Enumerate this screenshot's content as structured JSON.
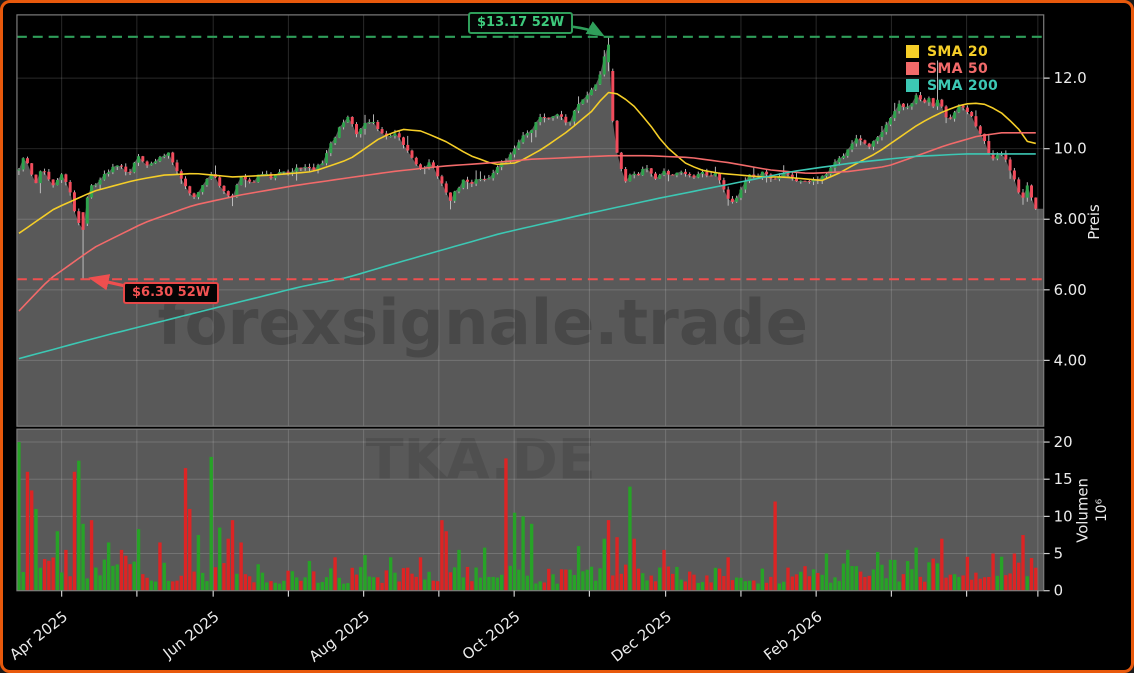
{
  "chart_data": {
    "type": "candlestick",
    "symbol_watermark": "TKA.DE",
    "site_watermark": "forexsignale.trade",
    "price_axis": {
      "label": "Preis",
      "ticks": [
        4,
        6,
        8,
        10,
        12
      ],
      "tick_labels": [
        "4.00",
        "6.00",
        "8.00",
        "10.0",
        "12.0"
      ],
      "range": [
        2.1,
        13.8
      ]
    },
    "volume_axis": {
      "label": "Volumen",
      "unit": "10⁶",
      "ticks": [
        0,
        5,
        10,
        15,
        20
      ],
      "range": [
        0,
        21.7
      ]
    },
    "x_axis": {
      "ticks": [
        {
          "t": 0.042,
          "label": "Apr 2025"
        },
        {
          "t": 0.116,
          "label": ""
        },
        {
          "t": 0.191,
          "label": "Jun 2025"
        },
        {
          "t": 0.265,
          "label": ""
        },
        {
          "t": 0.339,
          "label": "Aug 2025"
        },
        {
          "t": 0.413,
          "label": ""
        },
        {
          "t": 0.487,
          "label": "Oct 2025"
        },
        {
          "t": 0.561,
          "label": ""
        },
        {
          "t": 0.636,
          "label": "Dec 2025"
        },
        {
          "t": 0.71,
          "label": ""
        },
        {
          "t": 0.784,
          "label": "Feb 2026"
        },
        {
          "t": 0.858,
          "label": ""
        },
        {
          "t": 0.932,
          "label": ""
        },
        {
          "t": 1.002,
          "label": ""
        }
      ]
    },
    "legend": [
      {
        "name": "SMA 20",
        "color": "#f5ce28"
      },
      {
        "name": "SMA 50",
        "color": "#f26a6a"
      },
      {
        "name": "SMA 200",
        "color": "#3cc8b4"
      }
    ],
    "annotations": {
      "high": {
        "price": 13.17,
        "label": "$13.17 52W",
        "color": "#2f9e5a"
      },
      "low": {
        "price": 6.3,
        "label": "$6.30 52W",
        "color": "#ef4f4f"
      }
    },
    "colors": {
      "candle_up": "#2fa34d",
      "candle_down": "#f14c5c",
      "wick": "#c9c9c9",
      "vol_up": "#27a327",
      "vol_down": "#dd2424",
      "fill": "#595959",
      "watermark": "#484848",
      "grid": "rgba(255,255,255,0.16)",
      "spine": "#7d7d7d",
      "tick_text": "#ececec",
      "frame": "#e8590c"
    },
    "price_anchors": [
      [
        0,
        9.4
      ],
      [
        0.005,
        9.8
      ],
      [
        0.016,
        9.0
      ],
      [
        0.023,
        9.5
      ],
      [
        0.033,
        8.9
      ],
      [
        0.042,
        9.3
      ],
      [
        0.051,
        8.7
      ],
      [
        0.055,
        8.2
      ],
      [
        0.062,
        7.7
      ],
      [
        0.069,
        8.9
      ],
      [
        0.079,
        9.1
      ],
      [
        0.089,
        9.4
      ],
      [
        0.098,
        9.6
      ],
      [
        0.108,
        9.3
      ],
      [
        0.118,
        9.8
      ],
      [
        0.128,
        9.5
      ],
      [
        0.137,
        9.7
      ],
      [
        0.147,
        9.9
      ],
      [
        0.154,
        9.5
      ],
      [
        0.162,
        9.0
      ],
      [
        0.172,
        8.6
      ],
      [
        0.181,
        9.0
      ],
      [
        0.191,
        9.3
      ],
      [
        0.199,
        8.9
      ],
      [
        0.209,
        8.6
      ],
      [
        0.218,
        9.2
      ],
      [
        0.228,
        9.0
      ],
      [
        0.238,
        9.3
      ],
      [
        0.248,
        9.2
      ],
      [
        0.257,
        9.4
      ],
      [
        0.267,
        9.3
      ],
      [
        0.277,
        9.5
      ],
      [
        0.289,
        9.4
      ],
      [
        0.298,
        9.6
      ],
      [
        0.308,
        10.2
      ],
      [
        0.318,
        10.7
      ],
      [
        0.325,
        10.9
      ],
      [
        0.332,
        10.4
      ],
      [
        0.339,
        10.7
      ],
      [
        0.347,
        10.8
      ],
      [
        0.355,
        10.5
      ],
      [
        0.362,
        10.3
      ],
      [
        0.371,
        10.4
      ],
      [
        0.381,
        10.0
      ],
      [
        0.388,
        9.7
      ],
      [
        0.396,
        9.4
      ],
      [
        0.404,
        9.6
      ],
      [
        0.411,
        9.3
      ],
      [
        0.418,
        8.9
      ],
      [
        0.423,
        8.5
      ],
      [
        0.43,
        8.8
      ],
      [
        0.437,
        9.1
      ],
      [
        0.444,
        9.0
      ],
      [
        0.452,
        9.2
      ],
      [
        0.46,
        9.1
      ],
      [
        0.468,
        9.4
      ],
      [
        0.476,
        9.6
      ],
      [
        0.483,
        9.8
      ],
      [
        0.491,
        10.2
      ],
      [
        0.498,
        10.4
      ],
      [
        0.505,
        10.6
      ],
      [
        0.513,
        10.9
      ],
      [
        0.52,
        10.8
      ],
      [
        0.527,
        11.0
      ],
      [
        0.534,
        10.9
      ],
      [
        0.54,
        10.7
      ],
      [
        0.547,
        11.1
      ],
      [
        0.554,
        11.4
      ],
      [
        0.561,
        11.6
      ],
      [
        0.568,
        11.9
      ],
      [
        0.574,
        12.3
      ],
      [
        0.578,
        12.95
      ],
      [
        0.582,
        11.3
      ],
      [
        0.586,
        10.2
      ],
      [
        0.59,
        9.7
      ],
      [
        0.594,
        9.3
      ],
      [
        0.598,
        8.95
      ],
      [
        0.602,
        9.4
      ],
      [
        0.608,
        9.2
      ],
      [
        0.615,
        9.5
      ],
      [
        0.622,
        9.3
      ],
      [
        0.628,
        9.1
      ],
      [
        0.634,
        9.4
      ],
      [
        0.641,
        9.2
      ],
      [
        0.649,
        9.35
      ],
      [
        0.657,
        9.3
      ],
      [
        0.664,
        9.2
      ],
      [
        0.67,
        9.35
      ],
      [
        0.678,
        9.25
      ],
      [
        0.686,
        9.3
      ],
      [
        0.693,
        8.9
      ],
      [
        0.699,
        8.5
      ],
      [
        0.706,
        8.6
      ],
      [
        0.712,
        9.0
      ],
      [
        0.719,
        9.3
      ],
      [
        0.725,
        9.1
      ],
      [
        0.732,
        9.35
      ],
      [
        0.739,
        9.2
      ],
      [
        0.744,
        9.1
      ],
      [
        0.751,
        9.3
      ],
      [
        0.758,
        9.2
      ],
      [
        0.766,
        9.1
      ],
      [
        0.774,
        9.05
      ],
      [
        0.781,
        9.15
      ],
      [
        0.787,
        9.1
      ],
      [
        0.795,
        9.3
      ],
      [
        0.803,
        9.6
      ],
      [
        0.81,
        9.8
      ],
      [
        0.817,
        10.1
      ],
      [
        0.823,
        10.3
      ],
      [
        0.829,
        10.2
      ],
      [
        0.836,
        10.0
      ],
      [
        0.842,
        10.25
      ],
      [
        0.848,
        10.4
      ],
      [
        0.854,
        10.7
      ],
      [
        0.86,
        11.0
      ],
      [
        0.865,
        11.3
      ],
      [
        0.871,
        11.1
      ],
      [
        0.877,
        11.25
      ],
      [
        0.883,
        11.5
      ],
      [
        0.889,
        11.3
      ],
      [
        0.895,
        11.4
      ],
      [
        0.9,
        11.2
      ],
      [
        0.905,
        11.5
      ],
      [
        0.91,
        11.0
      ],
      [
        0.915,
        10.8
      ],
      [
        0.92,
        11.0
      ],
      [
        0.925,
        11.2
      ],
      [
        0.93,
        11.1
      ],
      [
        0.935,
        11.0
      ],
      [
        0.939,
        10.8
      ],
      [
        0.944,
        10.5
      ],
      [
        0.949,
        10.3
      ],
      [
        0.954,
        9.9
      ],
      [
        0.959,
        9.7
      ],
      [
        0.964,
        9.9
      ],
      [
        0.969,
        9.8
      ],
      [
        0.974,
        9.4
      ],
      [
        0.979,
        9.1
      ],
      [
        0.983,
        8.8
      ],
      [
        0.987,
        8.55
      ],
      [
        0.991,
        9.0
      ],
      [
        0.995,
        8.7
      ],
      [
        0.999,
        8.3
      ]
    ],
    "overrides": [
      {
        "t": 0.062,
        "low": 6.3,
        "close": 7.7,
        "open": 8.2
      },
      {
        "t": 0.578,
        "high": 13.17,
        "close": 12.95,
        "open": 12.45
      },
      {
        "t": 0.905,
        "high": 12.5
      }
    ],
    "sma20_anchors": [
      [
        0,
        7.6
      ],
      [
        0.035,
        8.3
      ],
      [
        0.074,
        8.8
      ],
      [
        0.113,
        9.1
      ],
      [
        0.142,
        9.25
      ],
      [
        0.172,
        9.3
      ],
      [
        0.21,
        9.2
      ],
      [
        0.248,
        9.25
      ],
      [
        0.289,
        9.35
      ],
      [
        0.325,
        9.7
      ],
      [
        0.355,
        10.3
      ],
      [
        0.376,
        10.55
      ],
      [
        0.396,
        10.5
      ],
      [
        0.42,
        10.2
      ],
      [
        0.444,
        9.8
      ],
      [
        0.468,
        9.55
      ],
      [
        0.49,
        9.6
      ],
      [
        0.515,
        10.0
      ],
      [
        0.54,
        10.5
      ],
      [
        0.565,
        11.1
      ],
      [
        0.578,
        11.6
      ],
      [
        0.59,
        11.55
      ],
      [
        0.605,
        11.2
      ],
      [
        0.62,
        10.7
      ],
      [
        0.635,
        10.1
      ],
      [
        0.655,
        9.6
      ],
      [
        0.67,
        9.4
      ],
      [
        0.69,
        9.3
      ],
      [
        0.71,
        9.25
      ],
      [
        0.73,
        9.2
      ],
      [
        0.75,
        9.2
      ],
      [
        0.77,
        9.15
      ],
      [
        0.79,
        9.1
      ],
      [
        0.806,
        9.3
      ],
      [
        0.825,
        9.6
      ],
      [
        0.845,
        9.9
      ],
      [
        0.865,
        10.3
      ],
      [
        0.885,
        10.7
      ],
      [
        0.905,
        11.0
      ],
      [
        0.922,
        11.2
      ],
      [
        0.937,
        11.3
      ],
      [
        0.952,
        11.25
      ],
      [
        0.967,
        11.0
      ],
      [
        0.982,
        10.6
      ],
      [
        0.993,
        10.15
      ]
    ],
    "sma50_anchors": [
      [
        0,
        5.4
      ],
      [
        0.03,
        6.3
      ],
      [
        0.074,
        7.2
      ],
      [
        0.123,
        7.9
      ],
      [
        0.172,
        8.4
      ],
      [
        0.22,
        8.7
      ],
      [
        0.27,
        8.95
      ],
      [
        0.318,
        9.15
      ],
      [
        0.367,
        9.35
      ],
      [
        0.415,
        9.5
      ],
      [
        0.465,
        9.6
      ],
      [
        0.503,
        9.7
      ],
      [
        0.542,
        9.75
      ],
      [
        0.581,
        9.8
      ],
      [
        0.62,
        9.8
      ],
      [
        0.66,
        9.75
      ],
      [
        0.699,
        9.6
      ],
      [
        0.738,
        9.4
      ],
      [
        0.776,
        9.3
      ],
      [
        0.815,
        9.35
      ],
      [
        0.854,
        9.5
      ],
      [
        0.883,
        9.8
      ],
      [
        0.912,
        10.1
      ],
      [
        0.942,
        10.35
      ],
      [
        0.966,
        10.45
      ],
      [
        0.996,
        10.45
      ]
    ],
    "sma200_anchors": [
      [
        0,
        4.05
      ],
      [
        0.084,
        4.7
      ],
      [
        0.181,
        5.4
      ],
      [
        0.279,
        6.1
      ],
      [
        0.323,
        6.35
      ],
      [
        0.376,
        6.8
      ],
      [
        0.474,
        7.6
      ],
      [
        0.55,
        8.1
      ],
      [
        0.63,
        8.6
      ],
      [
        0.7,
        9.0
      ],
      [
        0.76,
        9.35
      ],
      [
        0.82,
        9.6
      ],
      [
        0.88,
        9.78
      ],
      [
        0.93,
        9.85
      ],
      [
        0.996,
        9.85
      ]
    ],
    "volume_spikes": [
      [
        0.004,
        20,
        "g"
      ],
      [
        0.009,
        16,
        "r"
      ],
      [
        0.014,
        13.5,
        "r"
      ],
      [
        0.018,
        11,
        "g"
      ],
      [
        0.042,
        8,
        "g"
      ],
      [
        0.047,
        5.5,
        "r"
      ],
      [
        0.055,
        16,
        "r"
      ],
      [
        0.061,
        17.5,
        "g"
      ],
      [
        0.066,
        9,
        "g"
      ],
      [
        0.074,
        9.5,
        "r"
      ],
      [
        0.089,
        6.5,
        "g"
      ],
      [
        0.103,
        5.5,
        "r"
      ],
      [
        0.12,
        8.3,
        "g"
      ],
      [
        0.142,
        6.5,
        "r"
      ],
      [
        0.165,
        16.5,
        "r"
      ],
      [
        0.172,
        11,
        "r"
      ],
      [
        0.178,
        7.5,
        "g"
      ],
      [
        0.192,
        18,
        "g"
      ],
      [
        0.199,
        8.5,
        "g"
      ],
      [
        0.206,
        7,
        "r"
      ],
      [
        0.212,
        9.5,
        "r"
      ],
      [
        0.22,
        6.5,
        "r"
      ],
      [
        0.289,
        4,
        "g"
      ],
      [
        0.311,
        4.5,
        "r"
      ],
      [
        0.343,
        4.8,
        "g"
      ],
      [
        0.367,
        4.5,
        "g"
      ],
      [
        0.398,
        4.5,
        "r"
      ],
      [
        0.416,
        9.5,
        "r"
      ],
      [
        0.421,
        8,
        "r"
      ],
      [
        0.435,
        5.5,
        "g"
      ],
      [
        0.458,
        5.8,
        "g"
      ],
      [
        0.483,
        17.8,
        "r"
      ],
      [
        0.491,
        10.5,
        "g"
      ],
      [
        0.499,
        10,
        "g"
      ],
      [
        0.507,
        9,
        "g"
      ],
      [
        0.554,
        6,
        "g"
      ],
      [
        0.578,
        7,
        "g"
      ],
      [
        0.583,
        9.5,
        "r"
      ],
      [
        0.589,
        7.2,
        "r"
      ],
      [
        0.602,
        14,
        "g"
      ],
      [
        0.608,
        7,
        "r"
      ],
      [
        0.637,
        5.5,
        "r"
      ],
      [
        0.7,
        4.5,
        "r"
      ],
      [
        0.746,
        12,
        "r"
      ],
      [
        0.795,
        5,
        "g"
      ],
      [
        0.817,
        5.5,
        "g"
      ],
      [
        0.848,
        5.2,
        "g"
      ],
      [
        0.883,
        5.8,
        "g"
      ],
      [
        0.911,
        7,
        "r"
      ],
      [
        0.958,
        5,
        "r"
      ],
      [
        0.982,
        5,
        "r"
      ],
      [
        0.991,
        7.5,
        "r"
      ]
    ],
    "volume_envelope": [
      [
        0,
        4.2
      ],
      [
        0.1,
        4.2
      ],
      [
        0.2,
        3.2
      ],
      [
        0.3,
        2.6
      ],
      [
        0.45,
        2.8
      ],
      [
        0.6,
        3.0
      ],
      [
        0.72,
        2.4
      ],
      [
        0.85,
        3.6
      ],
      [
        1,
        4.0
      ]
    ]
  }
}
